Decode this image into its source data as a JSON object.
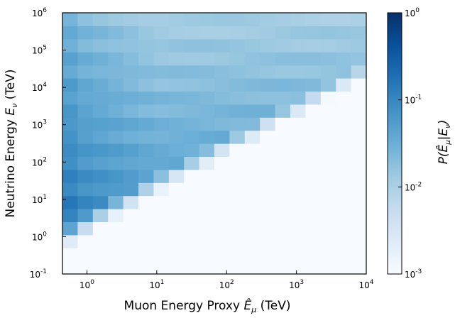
{
  "chart_data": {
    "type": "heatmap",
    "title": "",
    "xlabel": "Muon Energy Proxy Ê_μ (TeV)",
    "xlabel_parts": {
      "main": "Muon Energy Proxy ",
      "symbol": "Ê",
      "sub": "μ",
      "unit": " (TeV)"
    },
    "ylabel": "Neutrino Energy E_ν (TeV)",
    "ylabel_parts": {
      "main": "Neutrino Energy ",
      "symbol": "E",
      "sub": "ν",
      "unit": " (TeV)"
    },
    "colorbar_label": "P(Ê_μ|E_ν)",
    "colorbar_label_parts": {
      "p": "P(",
      "symbol": "Ê",
      "sub1": "μ",
      "bar": "|E",
      "sub2": "ν",
      "close": ")"
    },
    "x_scale": "log",
    "y_scale": "log",
    "x_log_range": [
      -0.35,
      4.0
    ],
    "y_log_range": [
      -1.0,
      6.0
    ],
    "x_ticks": [
      {
        "base": "10",
        "exp": "0",
        "v": 0
      },
      {
        "base": "10",
        "exp": "1",
        "v": 1
      },
      {
        "base": "10",
        "exp": "2",
        "v": 2
      },
      {
        "base": "10",
        "exp": "3",
        "v": 3
      },
      {
        "base": "10",
        "exp": "4",
        "v": 4
      }
    ],
    "y_ticks": [
      {
        "base": "10",
        "exp": "-1",
        "v": -1
      },
      {
        "base": "10",
        "exp": "0",
        "v": 0
      },
      {
        "base": "10",
        "exp": "1",
        "v": 1
      },
      {
        "base": "10",
        "exp": "2",
        "v": 2
      },
      {
        "base": "10",
        "exp": "3",
        "v": 3
      },
      {
        "base": "10",
        "exp": "4",
        "v": 4
      },
      {
        "base": "10",
        "exp": "5",
        "v": 5
      },
      {
        "base": "10",
        "exp": "6",
        "v": 6
      }
    ],
    "colorbar_scale": "log",
    "colorbar_log_range": [
      -3,
      0
    ],
    "colorbar_ticks": [
      {
        "base": "10",
        "exp": "0",
        "v": 0
      },
      {
        "base": "10",
        "exp": "-1",
        "v": -1
      },
      {
        "base": "10",
        "exp": "-2",
        "v": -2
      },
      {
        "base": "10",
        "exp": "-3",
        "v": -3
      }
    ],
    "colormap": "Blues",
    "colormap_stops": [
      "#f7fbff",
      "#deebf7",
      "#c6dbef",
      "#9ecae1",
      "#6baed6",
      "#4292c6",
      "#2171b5",
      "#08519c",
      "#08306b"
    ],
    "grid": false,
    "cells_description": "Conditional probability P(muon proxy | neutrino energy): ~20 log-spaced bins per axis; high density (~0.3) at low energies along left edge, a diagonal threshold edge Ê_μ ≈ 0.3·E_ν, and empty (<1e-3) region below it.",
    "bins": {
      "nx": 20,
      "ny": 20
    }
  }
}
